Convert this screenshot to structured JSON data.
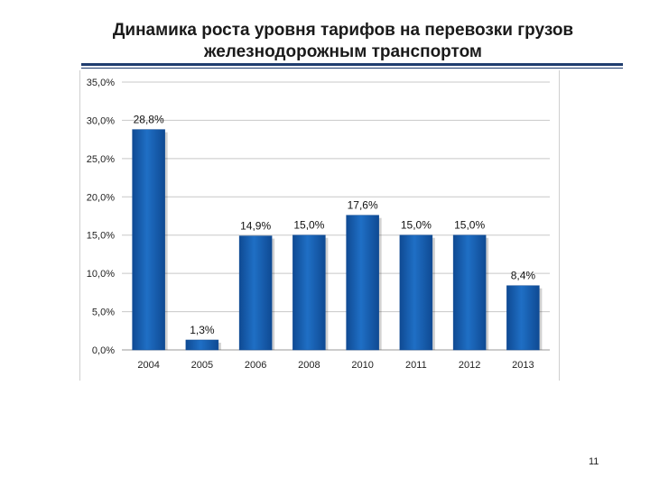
{
  "slide": {
    "title_line1": "Динамика роста уровня тарифов на перевозки грузов",
    "title_line2": "железнодорожным транспортом",
    "page_number": "11"
  },
  "colors": {
    "bar_fill": "#1f6fc5",
    "bar_dark": "#0f4a93",
    "title_rule": "#1f3c6e",
    "gridline": "#c8c8c8"
  },
  "chart_data": {
    "type": "bar",
    "title": "",
    "xlabel": "",
    "ylabel": "",
    "categories": [
      "2004",
      "2005",
      "2006",
      "2008",
      "2010",
      "2011",
      "2012",
      "2013"
    ],
    "values": [
      28.8,
      1.3,
      14.9,
      15.0,
      17.6,
      15.0,
      15.0,
      8.4
    ],
    "value_labels": [
      "28,8%",
      "1,3%",
      "14,9%",
      "15,0%",
      "17,6%",
      "15,0%",
      "15,0%",
      "8,4%"
    ],
    "ylim": [
      0,
      35
    ],
    "yticks": [
      0,
      5,
      10,
      15,
      20,
      25,
      30,
      35
    ],
    "ytick_labels": [
      "0,0%",
      "5,0%",
      "10,0%",
      "15,0%",
      "20,0%",
      "25,0%",
      "30,0%",
      "35,0%"
    ],
    "grid": true,
    "legend": "none"
  }
}
